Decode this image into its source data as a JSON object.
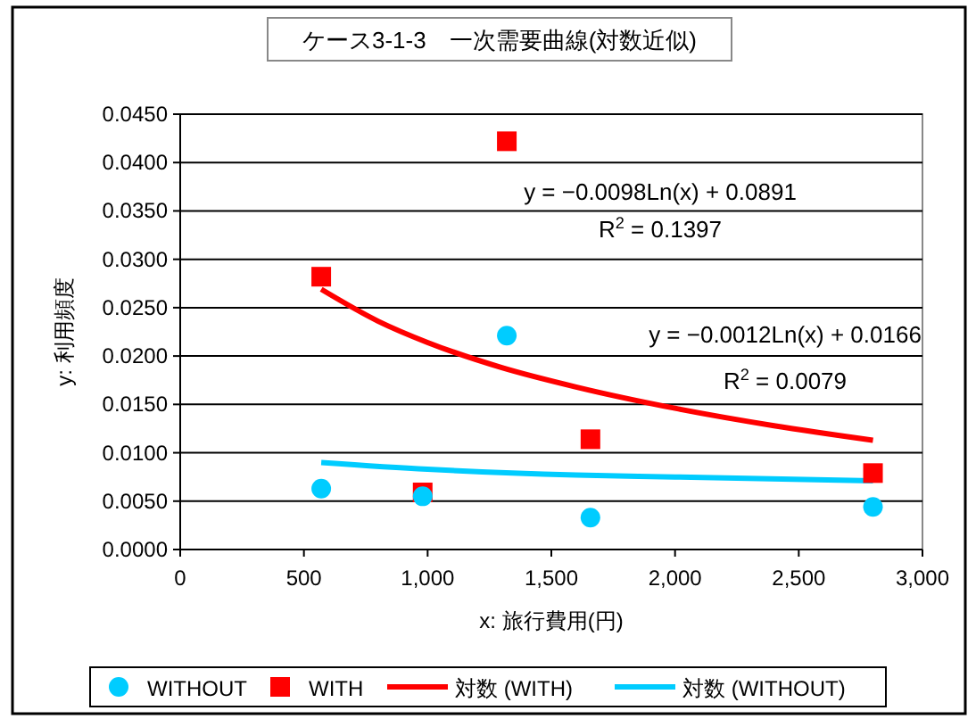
{
  "chart_data": {
    "type": "scatter",
    "title": "ケース3-1-3　一次需要曲線(対数近似)",
    "xlabel": "x: 旅行費用(円)",
    "ylabel": "y: 利用頻度",
    "xlim": [
      0,
      3000
    ],
    "xticks": [
      0,
      {
        "value": 500,
        "label": "500"
      },
      {
        "value": 1000,
        "label": "1,000"
      },
      {
        "value": 1500,
        "label": "1,500"
      },
      {
        "value": 2000,
        "label": "2,000"
      },
      {
        "value": 2500,
        "label": "2,500"
      },
      {
        "value": 3000,
        "label": "3,000"
      }
    ],
    "ylim": [
      0,
      0.045
    ],
    "yticks": [
      {
        "value": 0,
        "label": "0.0000"
      },
      {
        "value": 0.005,
        "label": "0.0050"
      },
      {
        "value": 0.01,
        "label": "0.0100"
      },
      {
        "value": 0.015,
        "label": "0.0150"
      },
      {
        "value": 0.02,
        "label": "0.0200"
      },
      {
        "value": 0.025,
        "label": "0.0250"
      },
      {
        "value": 0.03,
        "label": "0.0300"
      },
      {
        "value": 0.035,
        "label": "0.0350"
      },
      {
        "value": 0.04,
        "label": "0.0400"
      },
      {
        "value": 0.045,
        "label": "0.0450"
      }
    ],
    "grid": "y",
    "legend": "bottom",
    "series": [
      {
        "name": "WITHOUT",
        "type": "scatter",
        "marker": "circle",
        "color": "#00ccff",
        "x": [
          570,
          980,
          1320,
          1658,
          2800
        ],
        "values": [
          0.0063,
          0.0055,
          0.0221,
          0.0033,
          0.0044
        ]
      },
      {
        "name": "WITH",
        "type": "scatter",
        "marker": "square",
        "color": "#ff0000",
        "x": [
          570,
          980,
          1320,
          1658,
          2800
        ],
        "values": [
          0.0282,
          0.0059,
          0.0422,
          0.0114,
          0.0079
        ]
      },
      {
        "name": "対数 (WITH)",
        "type": "line",
        "marker": "none",
        "color": "#ff0000",
        "x": [
          570,
          800,
          1000,
          1300,
          1600,
          2000,
          2400,
          2800
        ],
        "values": [
          0.0269,
          0.0236,
          0.0214,
          0.0188,
          0.0168,
          0.0146,
          0.0128,
          0.0113
        ]
      },
      {
        "name": "対数 (WITHOUT)",
        "type": "line",
        "marker": "none",
        "color": "#00ccff",
        "x": [
          570,
          1000,
          1600,
          2000,
          2800
        ],
        "values": [
          0.009,
          0.0083,
          0.0077,
          0.0075,
          0.0071
        ]
      }
    ],
    "annotations": [
      "y = −0.0098Ln(x) + 0.0891",
      "R$^{2}$ = 0.1397",
      "y = −0.0012Ln(x) + 0.0166",
      "R$^{2}$ = 0.0079"
    ]
  }
}
